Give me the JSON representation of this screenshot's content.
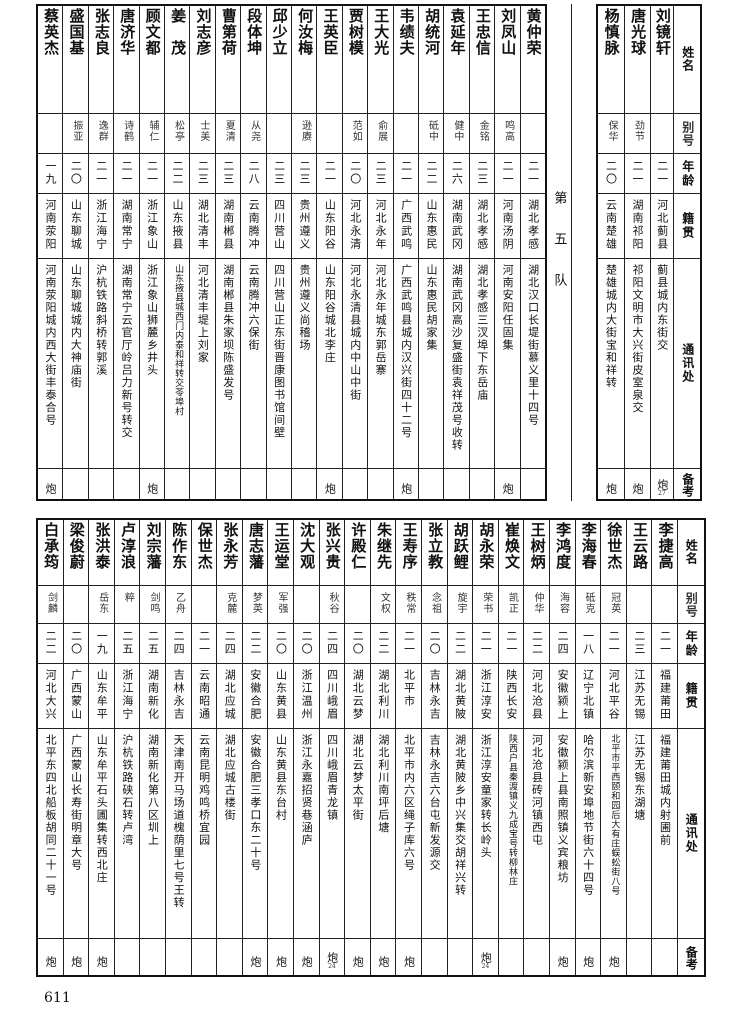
{
  "headers": {
    "name": "姓名",
    "alias": "别号",
    "age": "年龄",
    "origin": "籍贯",
    "address": "通讯处",
    "remark": "备考"
  },
  "top": {
    "rows_before_team": [
      {
        "name": "刘镜轩",
        "alias": "",
        "age": "二一",
        "origin": "河北蓟县",
        "address": "蓟县城内东街交",
        "remark": "炮",
        "note": "27"
      },
      {
        "name": "唐光球",
        "alias": "劲节",
        "age": "二一",
        "origin": "湖南祁阳",
        "address": "祁阳文明市大兴街皮室泉交",
        "remark": "炮",
        "note": ""
      },
      {
        "name": "杨慎脉",
        "alias": "保华",
        "age": "二〇",
        "origin": "云南楚雄",
        "address": "楚雄城内大街宝和祥转",
        "remark": "炮",
        "note": ""
      }
    ],
    "team_label": "第五队",
    "rows_after_team": [
      {
        "name": "黄仲荣",
        "alias": "",
        "age": "二一",
        "origin": "湖北孝感",
        "address": "湖北汉口长堤街慕义里十四号",
        "remark": "",
        "note": ""
      },
      {
        "name": "刘凤山",
        "alias": "鸣高",
        "age": "二一",
        "origin": "河南汤阴",
        "address": "河南安阳任固集",
        "remark": "炮",
        "note": ""
      },
      {
        "name": "王忠信",
        "alias": "金铭",
        "age": "二三",
        "origin": "湖北孝感",
        "address": "湖北孝感三汊埠下东岳庙",
        "remark": "",
        "note": ""
      },
      {
        "name": "袁延年",
        "alias": "健中",
        "age": "二六",
        "origin": "湖南武冈",
        "address": "湖南武冈高沙复盛街袁祥茂号收转",
        "remark": "",
        "note": ""
      },
      {
        "name": "胡统河",
        "alias": "砥中",
        "age": "二二",
        "origin": "山东惠民",
        "address": "山东惠民胡家集",
        "remark": "",
        "note": ""
      },
      {
        "name": "韦绩夫",
        "alias": "",
        "age": "二一",
        "origin": "广西武鸣",
        "address": "广西武鸣县城内汉兴街四十二号",
        "remark": "炮",
        "note": ""
      },
      {
        "name": "王大光",
        "alias": "俞展",
        "age": "二三",
        "origin": "河北永年",
        "address": "河北永年城东郭岳寨",
        "remark": "",
        "note": ""
      },
      {
        "name": "贾树模",
        "alias": "范如",
        "age": "二〇",
        "origin": "河北永清",
        "address": "河北永清县城内中山中街",
        "remark": "",
        "note": ""
      },
      {
        "name": "王英臣",
        "alias": "",
        "age": "二一",
        "origin": "山东阳谷",
        "address": "山东阳谷城北李庄",
        "remark": "炮",
        "note": ""
      },
      {
        "name": "何汝梅",
        "alias": "逊赓",
        "age": "二三",
        "origin": "贵州遵义",
        "address": "贵州遵义尚稽场",
        "remark": "",
        "note": ""
      },
      {
        "name": "邱少立",
        "alias": "",
        "age": "二三",
        "origin": "四川营山",
        "address": "四川营山正东街晋康图书馆间壁",
        "remark": "",
        "note": ""
      },
      {
        "name": "段体坤",
        "alias": "从尧",
        "age": "二八",
        "origin": "云南腾冲",
        "address": "云南腾冲六保街",
        "remark": "",
        "note": ""
      },
      {
        "name": "曹第荷",
        "alias": "夏清",
        "age": "二三",
        "origin": "湖南郴县",
        "address": "湖南郴县朱家坝陈盛发号",
        "remark": "",
        "note": ""
      },
      {
        "name": "刘志彦",
        "alias": "士美",
        "age": "二三",
        "origin": "湖北清丰",
        "address": "河北清丰堤上刘家",
        "remark": "",
        "note": ""
      },
      {
        "name": "姜　茂",
        "alias": "松亭",
        "age": "二二",
        "origin": "山东掖县",
        "address": "山东掖县城西门内泰和祥转交苓埠村",
        "remark": "",
        "note": ""
      },
      {
        "name": "顾文都",
        "alias": "辅仁",
        "age": "二一",
        "origin": "浙江象山",
        "address": "浙江象山狮麓乡井头",
        "remark": "炮",
        "note": ""
      },
      {
        "name": "唐济华",
        "alias": "诗鹤",
        "age": "二一",
        "origin": "湖南常宁",
        "address": "湖南常宁云官厅岭吕力新号转交",
        "remark": "",
        "note": ""
      },
      {
        "name": "张志良",
        "alias": "逸群",
        "age": "二一",
        "origin": "浙江海宁",
        "address": "沪杭铁路斜桥转郭溪",
        "remark": "",
        "note": ""
      },
      {
        "name": "盛国基",
        "alias": "振亚",
        "age": "二〇",
        "origin": "山东聊城",
        "address": "山东聊城城内大神庙街",
        "remark": "",
        "note": ""
      },
      {
        "name": "蔡英杰",
        "alias": "",
        "age": "一九",
        "origin": "河南荥阳",
        "address": "河南荥阳城内西大街丰泰合号",
        "remark": "炮",
        "note": ""
      }
    ]
  },
  "bottom": {
    "rows": [
      {
        "name": "李捷高",
        "alias": "",
        "age": "二一",
        "origin": "福建莆田",
        "address": "福建莆田城内射圃前",
        "remark": "",
        "note": ""
      },
      {
        "name": "王云路",
        "alias": "",
        "age": "二三",
        "origin": "江苏无锡",
        "address": "江苏无锡东湖塘",
        "remark": "",
        "note": ""
      },
      {
        "name": "徐世杰",
        "alias": "冠英",
        "age": "二一",
        "origin": "河北平谷",
        "address": "北平市平西颐和园后大有庄蜈蚣街八号",
        "remark": "炮",
        "note": ""
      },
      {
        "name": "李海春",
        "alias": "砥克",
        "age": "一八",
        "origin": "辽宁北镇",
        "address": "哈尔滨新安埠地节街六十四号",
        "remark": "炮",
        "note": ""
      },
      {
        "name": "李鸿度",
        "alias": "海容",
        "age": "二四",
        "origin": "安徽颍上",
        "address": "安徽颍上县南照镇义宾粮坊",
        "remark": "炮",
        "note": ""
      },
      {
        "name": "王树炳",
        "alias": "仲华",
        "age": "二二",
        "origin": "河北沧县",
        "address": "河北沧县砖河镇西屯",
        "remark": "",
        "note": ""
      },
      {
        "name": "崔焕文",
        "alias": "凯正",
        "age": "二一",
        "origin": "陕西长安",
        "address": "陕西户县秦渡镇义九成宝号转柳林庄",
        "remark": "",
        "note": ""
      },
      {
        "name": "胡永荣",
        "alias": "荣书",
        "age": "二一",
        "origin": "浙江淳安",
        "address": "浙江淳安童家转长岭头",
        "remark": "炮",
        "note": "24"
      },
      {
        "name": "胡跃鲤",
        "alias": "旋宇",
        "age": "二二",
        "origin": "湖北黄陂",
        "address": "湖北黄陂乡中兴集交胡祥兴转",
        "remark": "",
        "note": ""
      },
      {
        "name": "张立教",
        "alias": "念祖",
        "age": "二〇",
        "origin": "吉林永吉",
        "address": "吉林永吉六台屯新发源交",
        "remark": "",
        "note": ""
      },
      {
        "name": "王寿序",
        "alias": "秩常",
        "age": "二一",
        "origin": "北平市",
        "address": "北平市内六区绳子库六号",
        "remark": "炮",
        "note": ""
      },
      {
        "name": "朱继先",
        "alias": "文权",
        "age": "二二",
        "origin": "湖北利川",
        "address": "湖北利川南坪后塘",
        "remark": "炮",
        "note": ""
      },
      {
        "name": "许殿仁",
        "alias": "",
        "age": "二〇",
        "origin": "湖北云梦",
        "address": "湖北云梦太平街",
        "remark": "炮",
        "note": ""
      },
      {
        "name": "张兴贵",
        "alias": "秋谷",
        "age": "二四",
        "origin": "四川峨眉",
        "address": "四川峨眉青龙镇",
        "remark": "炮",
        "note": "24"
      },
      {
        "name": "沈大观",
        "alias": "",
        "age": "二〇",
        "origin": "浙江温州",
        "address": "浙江永嘉招贤巷涵庐",
        "remark": "炮",
        "note": ""
      },
      {
        "name": "王运堂",
        "alias": "军强",
        "age": "二〇",
        "origin": "山东黄县",
        "address": "山东黄县东台村",
        "remark": "炮",
        "note": ""
      },
      {
        "name": "唐志藩",
        "alias": "梦英",
        "age": "二二",
        "origin": "安徽合肥",
        "address": "安徽合肥三孝口东二十号",
        "remark": "炮",
        "note": ""
      },
      {
        "name": "张永芳",
        "alias": "克麓",
        "age": "二四",
        "origin": "湖北应城",
        "address": "湖北应城古楼街",
        "remark": "",
        "note": ""
      },
      {
        "name": "保世杰",
        "alias": "",
        "age": "二一",
        "origin": "云南昭通",
        "address": "云南昆明鸡鸣桥宜园",
        "remark": "",
        "note": ""
      },
      {
        "name": "陈作东",
        "alias": "乙舟",
        "age": "二四",
        "origin": "吉林永吉",
        "address": "天津南开马场道槐荫里七号王转",
        "remark": "",
        "note": ""
      },
      {
        "name": "刘宗藩",
        "alias": "剑鸣",
        "age": "二五",
        "origin": "湖南新化",
        "address": "湖南新化第八区圳上",
        "remark": "",
        "note": ""
      },
      {
        "name": "卢淳浪",
        "alias": "粹",
        "age": "二五",
        "origin": "浙江海宁",
        "address": "沪杭铁路硖石转卢湾",
        "remark": "",
        "note": ""
      },
      {
        "name": "张洪泰",
        "alias": "岳东",
        "age": "一九",
        "origin": "山东牟平",
        "address": "山东牟平石头圃集转西北庄",
        "remark": "炮",
        "note": ""
      },
      {
        "name": "梁俊蔚",
        "alias": "",
        "age": "二〇",
        "origin": "广西蒙山",
        "address": "广西蒙山长寿街明章大号",
        "remark": "炮",
        "note": ""
      },
      {
        "name": "白承筠",
        "alias": "剑麟",
        "age": "二二",
        "origin": "河北大兴",
        "address": "北平东四北船板胡同二十一号",
        "remark": "炮",
        "note": ""
      }
    ]
  },
  "page_number": "611"
}
